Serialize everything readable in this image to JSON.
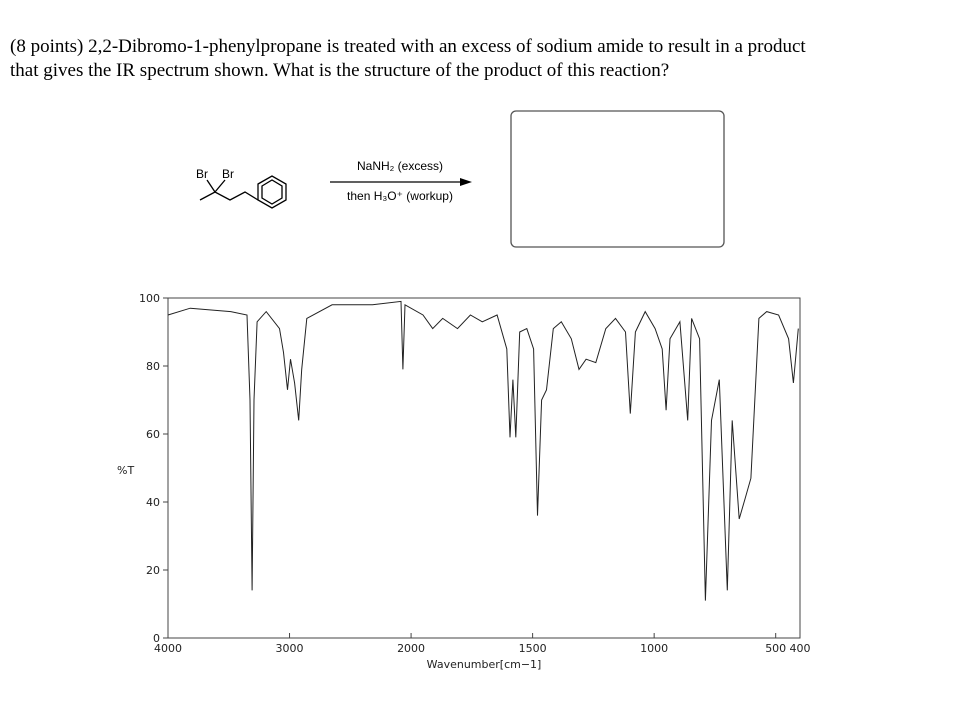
{
  "question": [
    "(8 points) 2,2-Dibromo-1-phenylpropane is treated with an excess of sodium amide to result in a product",
    "that gives the IR spectrum shown. What is the structure of the product of this reaction?"
  ],
  "reaction": {
    "substituents": [
      "Br",
      "Br"
    ],
    "reagents": [
      "NaNH₂ (excess)",
      "then H₃O⁺ (workup)"
    ]
  },
  "chart_data": {
    "type": "line",
    "y_label": "%T",
    "x_label": "Wavenumber[cm−1]",
    "xlim": [
      4000,
      400
    ],
    "x_scale_break": 2000,
    "x_scale_ratio": 2,
    "xticks": [
      4000,
      3000,
      2000,
      1500,
      1000,
      500,
      400
    ],
    "ylim": [
      0,
      100
    ],
    "yticks": [
      0,
      20,
      40,
      60,
      80,
      100
    ],
    "color": "#222222",
    "x": [
      4000,
      3817,
      3483,
      3350,
      3325,
      3308,
      3292,
      3267,
      3192,
      3083,
      3050,
      3017,
      2992,
      2958,
      2925,
      2900,
      2858,
      2650,
      2317,
      2083,
      2067,
      2050,
      1951,
      1911,
      1870,
      1809,
      1756,
      1707,
      1646,
      1606,
      1593,
      1581,
      1569,
      1553,
      1524,
      1496,
      1480,
      1463,
      1443,
      1415,
      1382,
      1341,
      1309,
      1280,
      1240,
      1199,
      1159,
      1118,
      1098,
      1077,
      1037,
      996,
      967,
      951,
      935,
      894,
      862,
      846,
      813,
      789,
      764,
      732,
      699,
      679,
      650,
      626,
      602,
      569,
      537,
      488,
      447,
      427,
      407
    ],
    "values": [
      95,
      97,
      96,
      95,
      70,
      14,
      70,
      93,
      96,
      91,
      84,
      73,
      82,
      75,
      64,
      79,
      94,
      98,
      98,
      99,
      79,
      98,
      95,
      91,
      94,
      91,
      95,
      93,
      95,
      85,
      59,
      76,
      59,
      90,
      91,
      85,
      36,
      70,
      73,
      91,
      93,
      88,
      79,
      82,
      81,
      91,
      94,
      90,
      66,
      90,
      96,
      91,
      85,
      67,
      88,
      93,
      64,
      94,
      88,
      11,
      64,
      76,
      14,
      64,
      35,
      41,
      47,
      94,
      96,
      95,
      88,
      75,
      91
    ]
  }
}
